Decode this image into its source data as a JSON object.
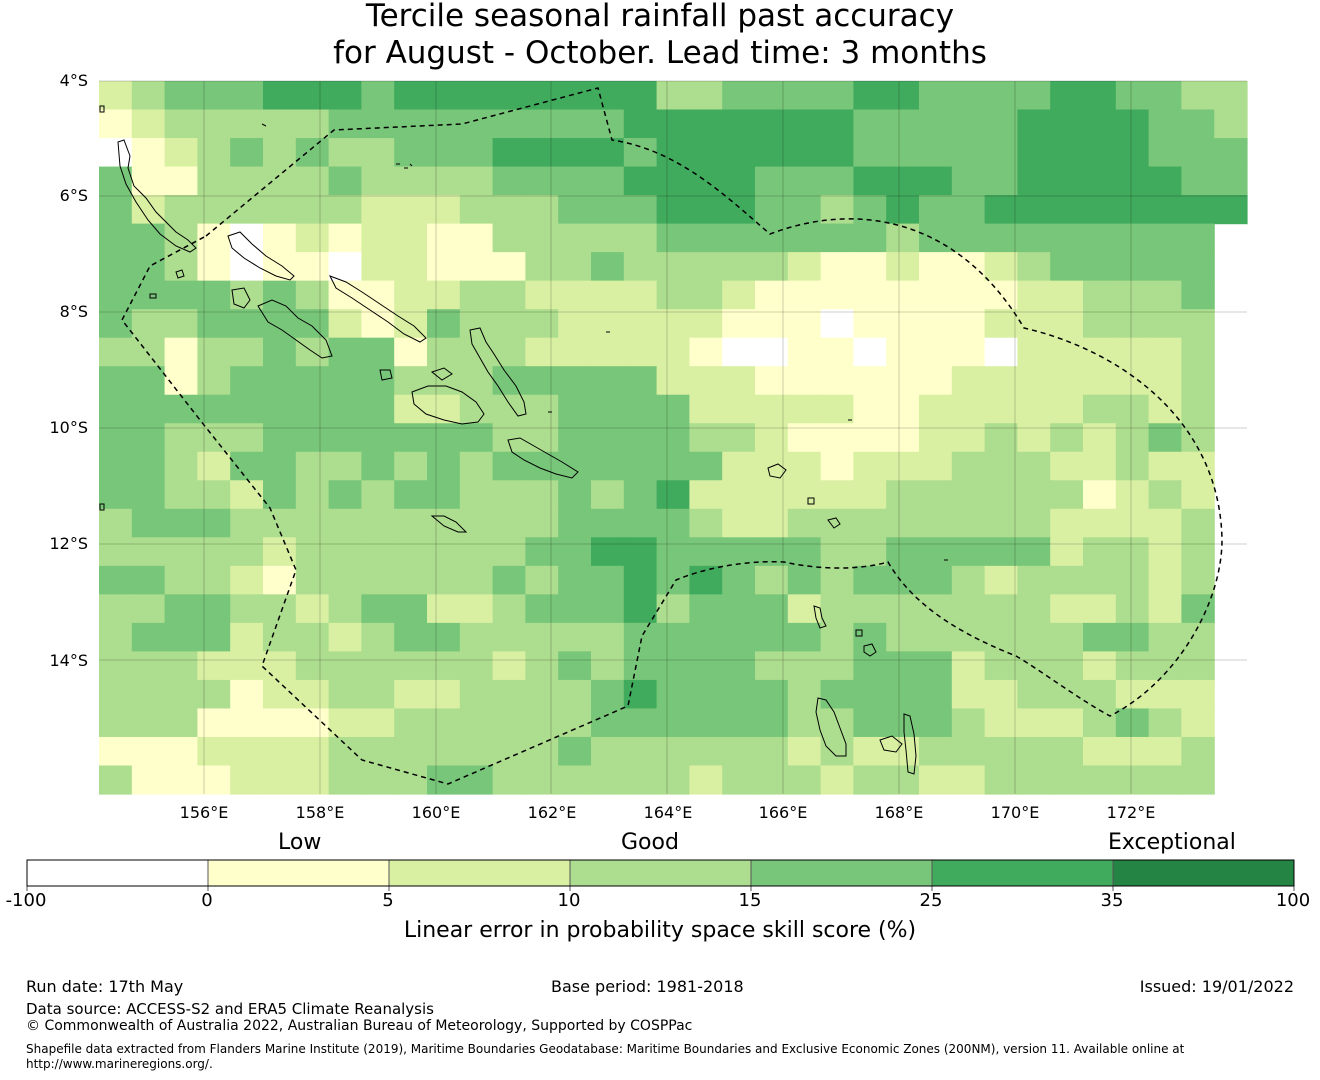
{
  "title_line1": "Tercile seasonal rainfall past accuracy",
  "title_line2": "for August - October. Lead time: 3 months",
  "lat_labels": [
    "4°S",
    "6°S",
    "8°S",
    "10°S",
    "12°S",
    "14°S"
  ],
  "lon_labels": [
    "156°E",
    "158°E",
    "160°E",
    "162°E",
    "164°E",
    "166°E",
    "168°E",
    "170°E",
    "172°E"
  ],
  "colorbar": {
    "categories": [
      "Low",
      "Good",
      "Exceptional"
    ],
    "tick_labels": [
      "-100",
      "0",
      "5",
      "10",
      "15",
      "25",
      "35",
      "100"
    ],
    "title": "Linear error in probability space skill score (%)",
    "colors": [
      "#ffffff",
      "#ffffcc",
      "#d9f0a3",
      "#addd8e",
      "#78c679",
      "#41ab5d",
      "#238443"
    ]
  },
  "grid_data": {
    "extent": {
      "lon": [
        154.2,
        174.0
      ],
      "lat": [
        -4.0,
        -16.3
      ]
    },
    "cell_deg": 0.833,
    "legend": ".=0 (white)  0=0..5  1=5..10  2=10..15  3=15..25  4=25..35",
    "rows": [
      "12333444344444444223333443333443322",
      "01222223333333334444444333334444332",
      ".0123232233344443444444333334444333",
      "30022223222233334444333444334444433",
      "31222222111222333444332343344444444",
      "3320.01011002222233333332333333333",
      "3320.00.11000223222221001001233333",
      "3333232001122111122100000000112223",
      "3223333101322211111000.00001112222",
      "2202232330222111110..00.000.111112",
      "3302333332223333311100000011111112",
      "3333333331122233331111100111112212",
      "3322233333332233332210000112121232",
      "3321332232323333333111011122211211",
      "3322132323322232341111112222220121",
      "2333222222222233332112222222211112",
      "2222212222222334433333223333312212",
      "3322102222223233434323233321222212",
      "2233221233112333423331222222211213",
      "2333122123322222333333232222223322",
      "2221112222221232333322233312221222",
      "2222011221122223433332333311222111",
      "2220000112222223333332233321112321",
      "0001111222222232222221211222221112",
      "2000111222332222221222122112222222"
    ]
  },
  "eez_name": "",
  "footer": {
    "run_date": "Run date: 17th May",
    "base_period": "Base period: 1981-2018",
    "issued": "Issued: 19/01/2022",
    "data_source": "Data source: ACCESS-S2 and ERA5 Climate Reanalysis",
    "copyright": "© Commonwealth of Australia 2022, Australian Bureau of Meteorology, Supported by COSPPac",
    "shapefile_line1": "Shapefile data extracted from Flanders Marine Institute (2019), Maritime Boundaries Geodatabase: Maritime Boundaries and Exclusive Economic Zones (200NM), version 11. Available online at",
    "shapefile_line2": "http://www.marineregions.org/."
  }
}
